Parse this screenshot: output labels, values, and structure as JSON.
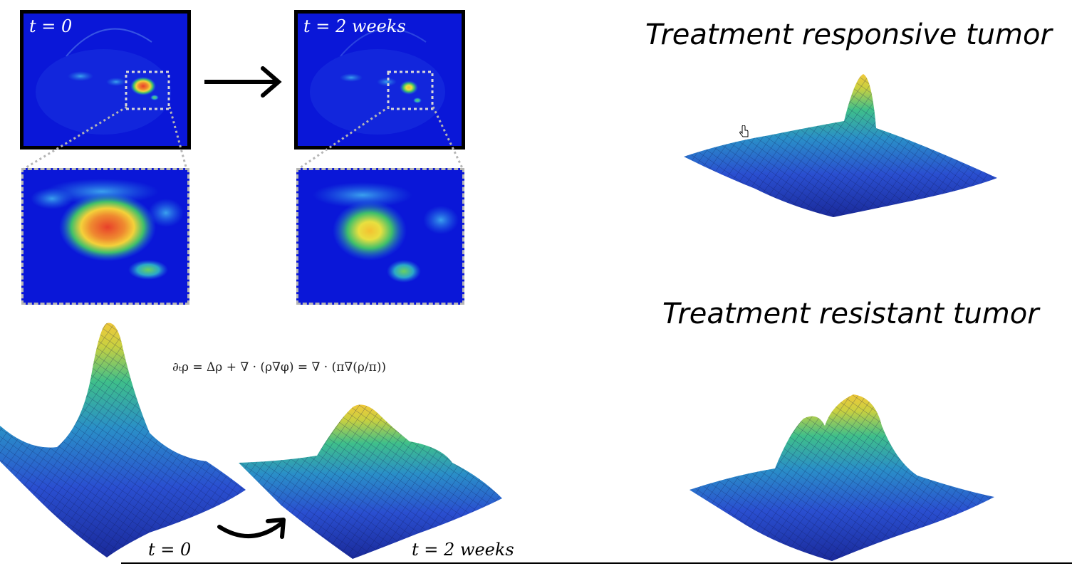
{
  "scans": {
    "before_label": "t = 0",
    "after_label": "t = 2 weeks"
  },
  "equation": "∂ₜρ = Δρ + ∇ · (ρ∇φ) = ∇ · (π∇(ρ/π))",
  "surfaces": {
    "before_label": "t = 0",
    "after_label": "t = 2 weeks"
  },
  "right_panel": {
    "responsive_title": "Treatment responsive tumor",
    "resistant_title": "Treatment resistant tumor"
  },
  "colors": {
    "scan_background": "#0a17d8",
    "hot": "#e8402a",
    "warm": "#f4d13a",
    "mid": "#3fbf6a",
    "surface_low": "#2a2fb8",
    "surface_mid": "#2a8fc8",
    "surface_high": "#f0c83a",
    "dashed": "#b5b5b5"
  }
}
